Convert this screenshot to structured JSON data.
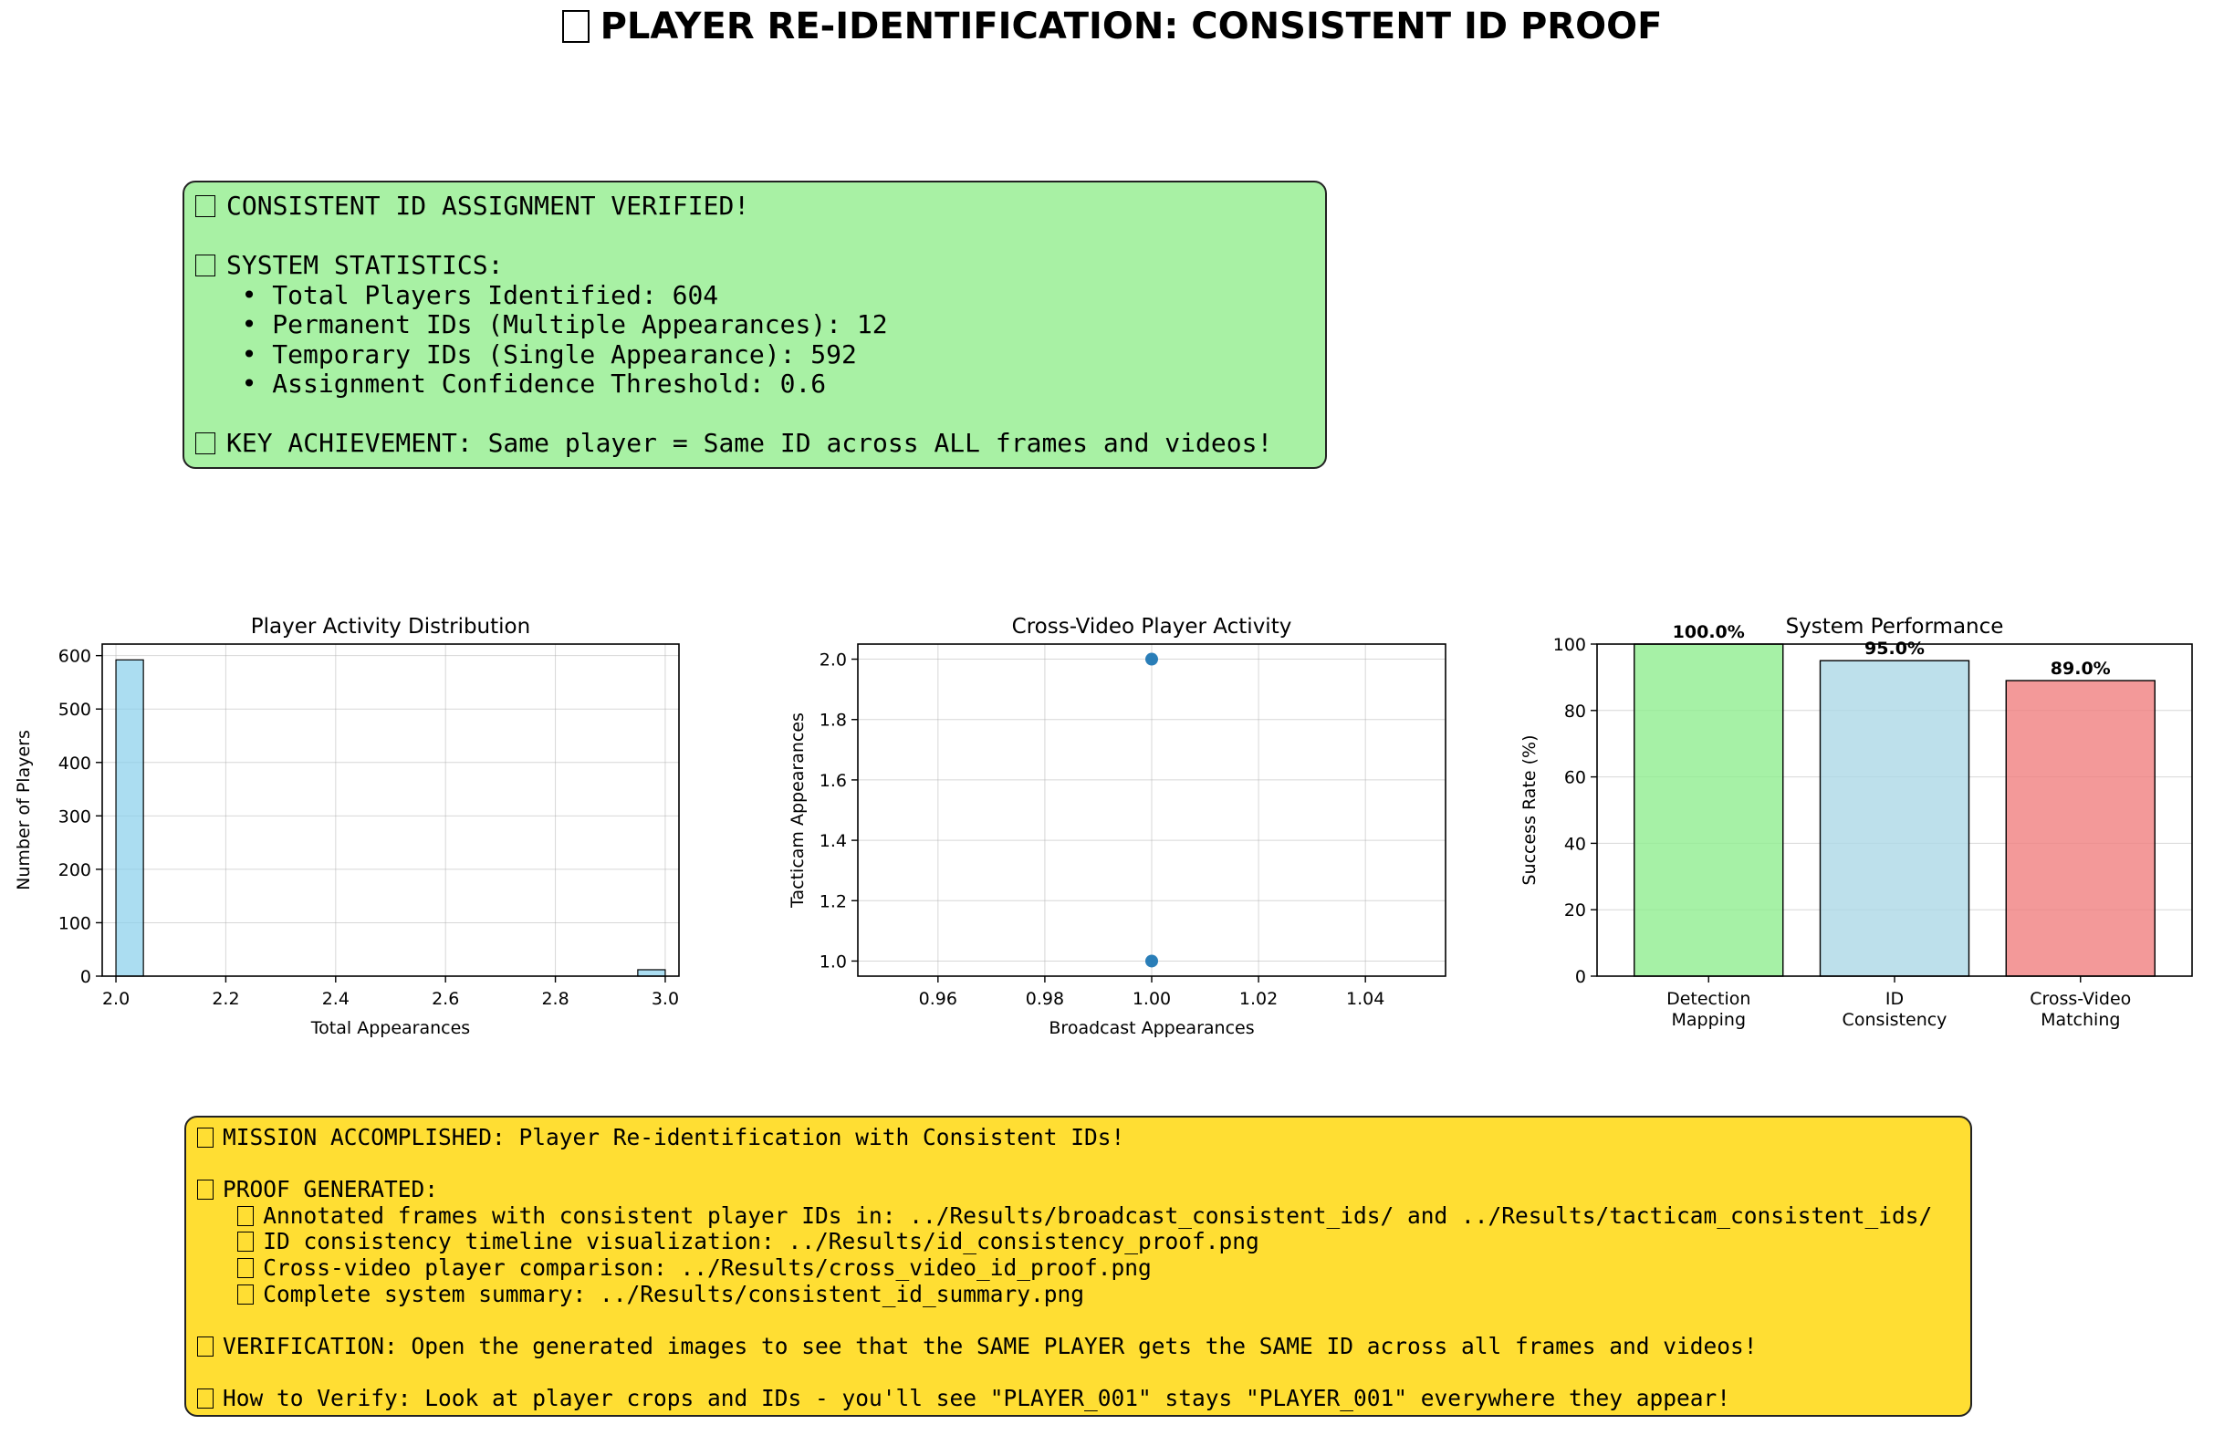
{
  "title": "PLAYER RE-IDENTIFICATION: CONSISTENT ID PROOF",
  "stats_box": {
    "lines": [
      {
        "icon": true,
        "text": "CONSISTENT ID ASSIGNMENT VERIFIED!"
      },
      {
        "icon": false,
        "text": ""
      },
      {
        "icon": true,
        "text": "SYSTEM STATISTICS:"
      },
      {
        "icon": false,
        "text": "   • Total Players Identified: 604"
      },
      {
        "icon": false,
        "text": "   • Permanent IDs (Multiple Appearances): 12"
      },
      {
        "icon": false,
        "text": "   • Temporary IDs (Single Appearance): 592"
      },
      {
        "icon": false,
        "text": "   • Assignment Confidence Threshold: 0.6"
      },
      {
        "icon": false,
        "text": ""
      },
      {
        "icon": true,
        "text": "KEY ACHIEVEMENT: Same player = Same ID across ALL frames and videos!"
      }
    ]
  },
  "summary_box": {
    "lines": [
      {
        "indent": "",
        "icon": true,
        "text": "MISSION ACCOMPLISHED: Player Re-identification with Consistent IDs!"
      },
      {
        "indent": "",
        "icon": false,
        "text": ""
      },
      {
        "indent": "",
        "icon": true,
        "text": "PROOF GENERATED:"
      },
      {
        "indent": "   ",
        "icon": true,
        "text": "Annotated frames with consistent player IDs in: ../Results/broadcast_consistent_ids/ and ../Results/tacticam_consistent_ids/"
      },
      {
        "indent": "   ",
        "icon": true,
        "text": "ID consistency timeline visualization: ../Results/id_consistency_proof.png"
      },
      {
        "indent": "   ",
        "icon": true,
        "text": "Cross-video player comparison: ../Results/cross_video_id_proof.png"
      },
      {
        "indent": "   ",
        "icon": true,
        "text": "Complete system summary: ../Results/consistent_id_summary.png"
      },
      {
        "indent": "",
        "icon": false,
        "text": ""
      },
      {
        "indent": "",
        "icon": true,
        "text": "VERIFICATION: Open the generated images to see that the SAME PLAYER gets the SAME ID across all frames and videos!"
      },
      {
        "indent": "",
        "icon": false,
        "text": ""
      },
      {
        "indent": "",
        "icon": true,
        "text": "How to Verify: Look at player crops and IDs - you'll see \"PLAYER_001\" stays \"PLAYER_001\" everywhere they appear!"
      }
    ]
  },
  "chart_data": [
    {
      "type": "bar",
      "subtype": "histogram",
      "title": "Player Activity Distribution",
      "xlabel": "Total Appearances",
      "ylabel": "Number of Players",
      "bins": [
        {
          "x0": 2.0,
          "x1": 2.05,
          "count": 592
        },
        {
          "x0": 2.95,
          "x1": 3.0,
          "count": 12
        }
      ],
      "xlim": [
        1.975,
        3.025
      ],
      "ylim": [
        0,
        621.6
      ],
      "xticks": [
        "2.0",
        "2.2",
        "2.4",
        "2.6",
        "2.8",
        "3.0"
      ],
      "yticks": [
        "0",
        "100",
        "200",
        "300",
        "400",
        "500",
        "600"
      ],
      "color": "#87ceeb",
      "grid": true
    },
    {
      "type": "scatter",
      "title": "Cross-Video Player Activity",
      "xlabel": "Broadcast Appearances",
      "ylabel": "Tacticam Appearances",
      "points": [
        {
          "x": 1.0,
          "y": 2.0
        },
        {
          "x": 1.0,
          "y": 1.0
        }
      ],
      "xlim": [
        0.945,
        1.055
      ],
      "ylim": [
        0.95,
        2.05
      ],
      "xticks": [
        "0.96",
        "0.98",
        "1.00",
        "1.02",
        "1.04"
      ],
      "yticks": [
        "1.0",
        "1.2",
        "1.4",
        "1.6",
        "1.8",
        "2.0"
      ],
      "color": "#1f77b4",
      "grid": true
    },
    {
      "type": "bar",
      "title": "System Performance",
      "ylabel": "Success Rate (%)",
      "categories": [
        "Detection\nMapping",
        "ID\nConsistency",
        "Cross-Video\nMatching"
      ],
      "values": [
        100.0,
        95.0,
        89.0
      ],
      "data_labels": [
        "100.0%",
        "95.0%",
        "89.0%"
      ],
      "colors": [
        "#90ee90",
        "#add8e6",
        "#f08080"
      ],
      "ylim": [
        0,
        100
      ],
      "yticks": [
        "0",
        "20",
        "40",
        "60",
        "80",
        "100"
      ],
      "grid": true
    }
  ]
}
